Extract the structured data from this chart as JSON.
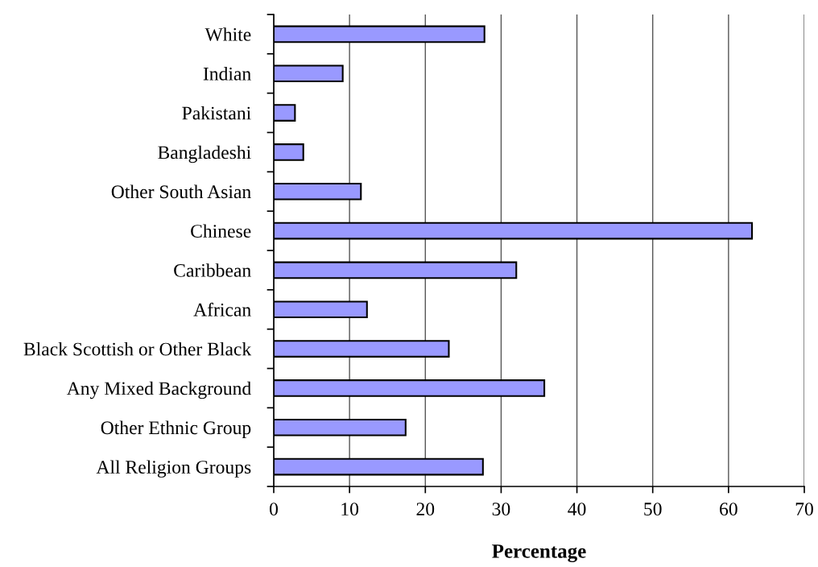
{
  "chart_data": {
    "type": "bar",
    "orientation": "horizontal",
    "xlabel": "Percentage",
    "categories": [
      "White",
      "Indian",
      "Pakistani",
      "Bangladeshi",
      "Other South Asian",
      "Chinese",
      "Caribbean",
      "African",
      "Black Scottish or Other Black",
      "Any Mixed Background",
      "Other Ethnic Group",
      "All Religion Groups"
    ],
    "values": [
      27.8,
      9.1,
      2.8,
      3.9,
      11.5,
      63.1,
      32.0,
      12.3,
      23.1,
      35.7,
      17.4,
      27.6
    ],
    "color": "#9999ff",
    "xlim": [
      0,
      70
    ],
    "xticks": [
      0,
      10,
      20,
      30,
      40,
      50,
      60,
      70
    ],
    "grid": "x"
  }
}
